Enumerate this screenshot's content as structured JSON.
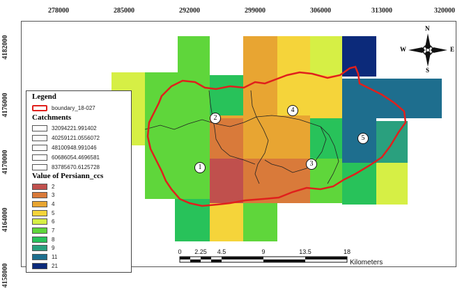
{
  "x_ticks": [
    "278000",
    "285000",
    "292000",
    "299000",
    "306000",
    "313000",
    "320000"
  ],
  "y_ticks": [
    "4182000",
    "4176000",
    "4170000",
    "4164000",
    "4158000"
  ],
  "legend": {
    "title": "Legend",
    "boundary_label": "boundary_18-027",
    "catchments_title": "Catchments",
    "catchments": [
      "32094221.991402",
      "40259121.0556072",
      "48100948.991046",
      "60686054.4696581",
      "83785670.6125728"
    ],
    "value_title": "Value of Persiann_ccs",
    "classes": [
      {
        "label": "2",
        "color": "#c0504d"
      },
      {
        "label": "3",
        "color": "#d97a3a"
      },
      {
        "label": "4",
        "color": "#e8a532"
      },
      {
        "label": "5",
        "color": "#f5d43a"
      },
      {
        "label": "6",
        "color": "#d6ef45"
      },
      {
        "label": "7",
        "color": "#5fd63b"
      },
      {
        "label": "8",
        "color": "#28c25a"
      },
      {
        "label": "9",
        "color": "#2aa07e"
      },
      {
        "label": "11",
        "color": "#1e6e8e"
      },
      {
        "label": "21",
        "color": "#0c2a7a"
      }
    ]
  },
  "catchment_labels": [
    "1",
    "2",
    "3",
    "4",
    "5"
  ],
  "north_arrow": {
    "n": "N",
    "s": "S",
    "e": "E",
    "w": "W"
  },
  "scale": {
    "labels": [
      "0",
      "2.25",
      "4.5",
      "9",
      "13.5",
      "18"
    ],
    "unit": "Kilometers"
  }
}
